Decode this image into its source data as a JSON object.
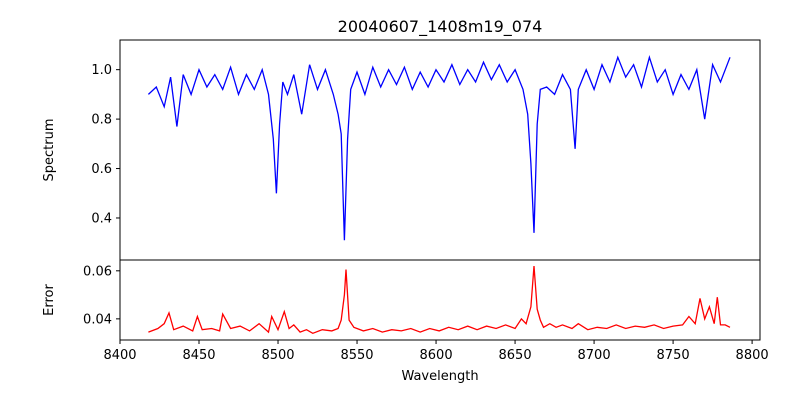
{
  "chart_data": [
    {
      "type": "line",
      "title": "20040607_1408m19_074",
      "ylabel": "Spectrum",
      "xlabel": "",
      "xlim": [
        8400,
        8805
      ],
      "ylim": [
        0.23,
        1.12
      ],
      "yticks": [
        "0.4",
        "0.6",
        "0.8",
        "1.0"
      ],
      "ytick_values": [
        0.4,
        0.6,
        0.8,
        1.0
      ],
      "grid": false,
      "series": [
        {
          "color": "#0000ff",
          "x": [
            8418,
            8423,
            8428,
            8432,
            8436,
            8440,
            8445,
            8450,
            8455,
            8460,
            8465,
            8470,
            8475,
            8480,
            8485,
            8490,
            8494,
            8497,
            8499,
            8501,
            8503,
            8506,
            8510,
            8515,
            8520,
            8525,
            8530,
            8535,
            8538,
            8540,
            8542,
            8544,
            8546,
            8550,
            8555,
            8560,
            8565,
            8570,
            8575,
            8580,
            8585,
            8590,
            8595,
            8600,
            8605,
            8610,
            8615,
            8620,
            8625,
            8630,
            8635,
            8640,
            8645,
            8650,
            8655,
            8658,
            8660,
            8662,
            8664,
            8666,
            8670,
            8675,
            8680,
            8685,
            8688,
            8690,
            8695,
            8700,
            8705,
            8710,
            8715,
            8720,
            8725,
            8730,
            8735,
            8740,
            8745,
            8750,
            8755,
            8760,
            8765,
            8770,
            8775,
            8780,
            8786
          ],
          "y": [
            0.9,
            0.93,
            0.85,
            0.97,
            0.77,
            0.98,
            0.9,
            1.0,
            0.93,
            0.98,
            0.92,
            1.01,
            0.9,
            0.98,
            0.92,
            1.0,
            0.9,
            0.72,
            0.5,
            0.78,
            0.95,
            0.9,
            0.98,
            0.82,
            1.02,
            0.92,
            1.0,
            0.9,
            0.82,
            0.74,
            0.31,
            0.72,
            0.92,
            0.99,
            0.9,
            1.01,
            0.93,
            1.0,
            0.94,
            1.01,
            0.92,
            0.99,
            0.93,
            1.0,
            0.95,
            1.02,
            0.94,
            1.0,
            0.95,
            1.03,
            0.96,
            1.02,
            0.95,
            1.0,
            0.92,
            0.82,
            0.62,
            0.34,
            0.78,
            0.92,
            0.93,
            0.9,
            0.98,
            0.92,
            0.68,
            0.92,
            1.0,
            0.92,
            1.02,
            0.95,
            1.05,
            0.97,
            1.02,
            0.93,
            1.05,
            0.95,
            1.0,
            0.9,
            0.98,
            0.92,
            1.0,
            0.8,
            1.02,
            0.95,
            1.05
          ]
        }
      ]
    },
    {
      "type": "line",
      "title": "",
      "ylabel": "Error",
      "xlabel": "Wavelength",
      "xlim": [
        8400,
        8805
      ],
      "ylim": [
        0.0312,
        0.0645
      ],
      "xticks": [
        "8400",
        "8450",
        "8500",
        "8550",
        "8600",
        "8650",
        "8700",
        "8750",
        "8800"
      ],
      "xtick_values": [
        8400,
        8450,
        8500,
        8550,
        8600,
        8650,
        8700,
        8750,
        8800
      ],
      "yticks": [
        "0.04",
        "0.06"
      ],
      "ytick_values": [
        0.04,
        0.06
      ],
      "grid": false,
      "series": [
        {
          "color": "#ff0000",
          "x": [
            8418,
            8424,
            8428,
            8431,
            8434,
            8440,
            8446,
            8449,
            8452,
            8458,
            8463,
            8465,
            8470,
            8476,
            8482,
            8488,
            8494,
            8496,
            8500,
            8504,
            8507,
            8510,
            8514,
            8518,
            8522,
            8528,
            8534,
            8538,
            8540,
            8542,
            8543,
            8545,
            8548,
            8554,
            8560,
            8566,
            8572,
            8578,
            8584,
            8590,
            8596,
            8602,
            8608,
            8614,
            8620,
            8626,
            8632,
            8638,
            8644,
            8650,
            8654,
            8657,
            8660,
            8662,
            8664,
            8666,
            8668,
            8672,
            8676,
            8680,
            8686,
            8690,
            8696,
            8702,
            8708,
            8714,
            8720,
            8726,
            8732,
            8738,
            8744,
            8750,
            8756,
            8760,
            8764,
            8767,
            8770,
            8773,
            8776,
            8778,
            8780,
            8783,
            8786
          ],
          "y": [
            0.0345,
            0.036,
            0.038,
            0.0425,
            0.0355,
            0.037,
            0.035,
            0.041,
            0.0355,
            0.036,
            0.035,
            0.042,
            0.036,
            0.037,
            0.035,
            0.038,
            0.0345,
            0.041,
            0.0355,
            0.043,
            0.036,
            0.0375,
            0.0345,
            0.0355,
            0.034,
            0.0355,
            0.035,
            0.036,
            0.0395,
            0.05,
            0.0605,
            0.0395,
            0.0365,
            0.035,
            0.036,
            0.0345,
            0.0355,
            0.035,
            0.036,
            0.0345,
            0.036,
            0.035,
            0.0365,
            0.0355,
            0.037,
            0.0355,
            0.037,
            0.036,
            0.0375,
            0.036,
            0.04,
            0.038,
            0.045,
            0.062,
            0.044,
            0.0395,
            0.0365,
            0.038,
            0.0365,
            0.0375,
            0.036,
            0.038,
            0.0355,
            0.0365,
            0.036,
            0.0375,
            0.036,
            0.037,
            0.0365,
            0.0375,
            0.036,
            0.037,
            0.0375,
            0.041,
            0.038,
            0.0485,
            0.04,
            0.045,
            0.038,
            0.049,
            0.0375,
            0.0375,
            0.0365
          ]
        }
      ]
    }
  ]
}
